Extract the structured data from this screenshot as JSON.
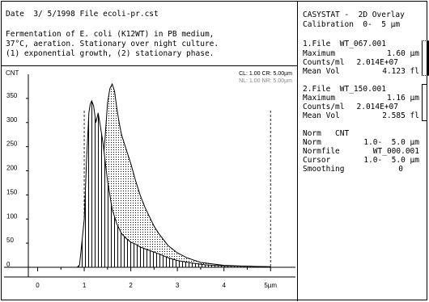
{
  "header": {
    "date_line": "Date  3/ 5/1998 File ecoli-pr.cst",
    "description": [
      "Fermentation of E. coli (K12WT) in PB medium,",
      "37°C, aeration. Stationary over night culture.",
      "(1) exponential growth, (2) stationary phase."
    ]
  },
  "plot": {
    "y_axis_title": "CNT",
    "cl_label": "CL: 1.00 CR: 5.00µm",
    "nl_label": "NL: 1.00 NR: 5.00µm"
  },
  "panel": {
    "title": "CASYSTAT -  2D Overlay",
    "calibration": "Calibration  0-  5 µm",
    "file1": {
      "file": "1.File  WT_067.001",
      "maximum_label": "Maximum",
      "maximum_value": "1.60 µm",
      "counts_label": "Counts/ml",
      "counts_value": "2.014E+07",
      "meanvol_label": "Mean Vol",
      "meanvol_value": "4.123 fl"
    },
    "file2": {
      "file": "2.File  WT_150.001",
      "maximum_label": "Maximum",
      "maximum_value": "1.16 µm",
      "counts_label": "Counts/ml",
      "counts_value": "2.014E+07",
      "meanvol_label": "Mean Vol",
      "meanvol_value": "2.585 fl"
    },
    "norm": {
      "header": "Norm   CNT",
      "norm_label": "Norm",
      "norm_value": "1.0-  5.0 µm",
      "normfile_label": "Normfile",
      "normfile_value": "WT_000.001",
      "cursor_label": "Cursor",
      "cursor_value": "1.0-  5.0 µm",
      "smoothing_label": "Smoothing",
      "smoothing_value": "0"
    }
  },
  "chart_data": {
    "type": "area",
    "title": "",
    "xlabel": "",
    "ylabel": "CNT",
    "xlim": [
      -0.2,
      5.5
    ],
    "ylim": [
      0,
      400
    ],
    "x_ticks": [
      "0",
      "1",
      "2",
      "3",
      "4",
      "5µm"
    ],
    "x_tick_values": [
      0,
      1,
      2,
      3,
      4,
      5
    ],
    "y_ticks": [
      "0",
      "50",
      "100",
      "150",
      "200",
      "250",
      "300",
      "350"
    ],
    "y_tick_values": [
      0,
      50,
      100,
      150,
      200,
      250,
      300,
      350
    ],
    "cursors": [
      1.0,
      5.0
    ],
    "series": [
      {
        "name": "WT_067.001",
        "fill": "dotted",
        "x": [
          0.9,
          1.0,
          1.1,
          1.2,
          1.3,
          1.35,
          1.4,
          1.45,
          1.5,
          1.55,
          1.6,
          1.65,
          1.7,
          1.75,
          1.8,
          1.9,
          2.0,
          2.1,
          2.2,
          2.3,
          2.4,
          2.5,
          2.6,
          2.8,
          3.0,
          3.2,
          3.5,
          4.0,
          4.5,
          5.0
        ],
        "y": [
          0,
          5,
          15,
          40,
          100,
          150,
          210,
          270,
          340,
          370,
          380,
          365,
          330,
          300,
          275,
          245,
          215,
          180,
          150,
          125,
          105,
          85,
          70,
          45,
          30,
          20,
          10,
          4,
          2,
          1
        ]
      },
      {
        "name": "WT_150.001",
        "fill": "hatched",
        "x": [
          0.85,
          0.9,
          1.0,
          1.05,
          1.1,
          1.13,
          1.16,
          1.2,
          1.25,
          1.3,
          1.35,
          1.4,
          1.45,
          1.5,
          1.6,
          1.7,
          1.8,
          1.9,
          2.0,
          2.1,
          2.2,
          2.4,
          2.6,
          2.8,
          3.0,
          3.3,
          3.6,
          4.0,
          4.5,
          5.0
        ],
        "y": [
          0,
          5,
          100,
          220,
          320,
          338,
          345,
          335,
          300,
          320,
          290,
          260,
          220,
          180,
          120,
          90,
          70,
          60,
          52,
          48,
          42,
          35,
          28,
          20,
          14,
          9,
          5,
          3,
          2,
          1
        ]
      }
    ]
  }
}
